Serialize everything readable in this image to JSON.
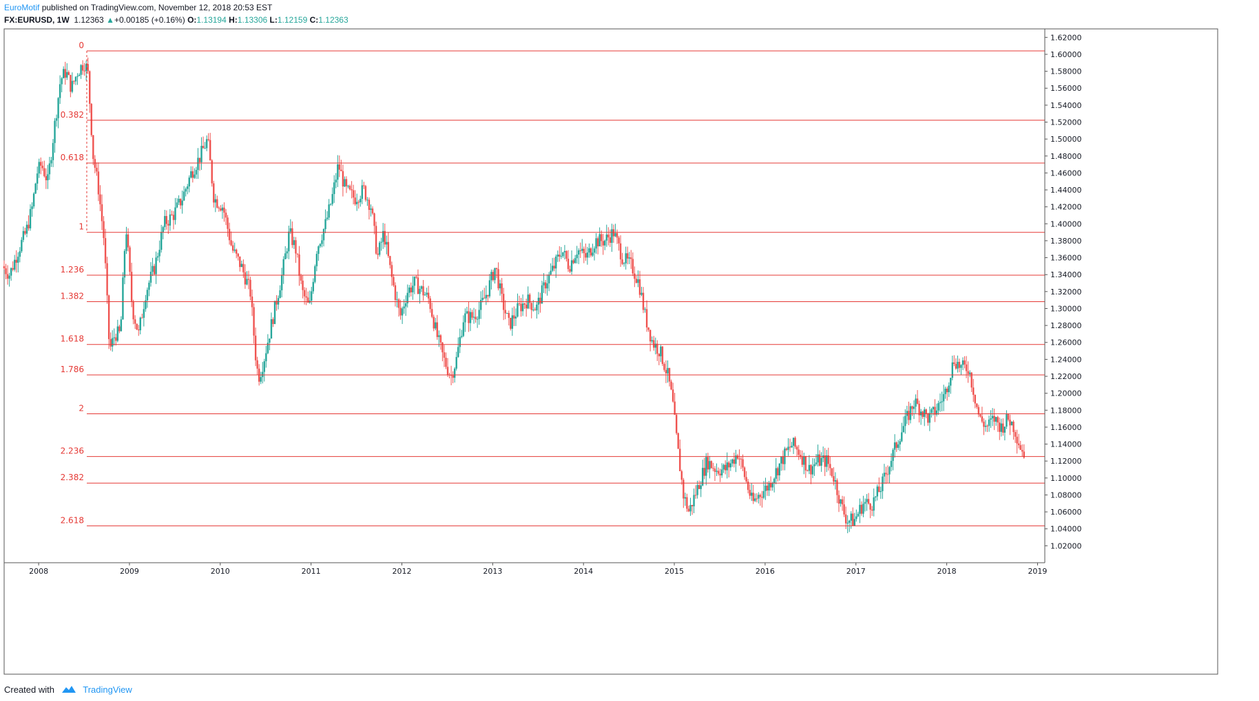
{
  "header": {
    "publisher": "EuroMotif",
    "published_text": " published on TradingView.com, November 12, 2018 20:53 EST",
    "symbol": "FX:EURUSD, 1W",
    "last": "1.12363",
    "change": "+0.00185 (+0.16%)",
    "open_label": "O:",
    "open": "1.13194",
    "high_label": "H:",
    "high": "1.13306",
    "low_label": "L:",
    "low": "1.12159",
    "close_label": "C:",
    "close": "1.12363"
  },
  "footer": {
    "created_with": "Created with",
    "brand": "TradingView"
  },
  "colors": {
    "up": "#26a69a",
    "down": "#ef5350",
    "fib": "#e53935",
    "grid_border": "#555555",
    "brand": "#2196f3"
  },
  "chart_data": {
    "type": "candlestick",
    "timeframe": "1W",
    "symbol": "EURUSD",
    "x_tick_labels": [
      "2008",
      "2009",
      "2010",
      "2011",
      "2012",
      "2013",
      "2014",
      "2015",
      "2016",
      "2017",
      "2018",
      "2019"
    ],
    "x_tick_years": [
      2008,
      2009,
      2010,
      2011,
      2012,
      2013,
      2014,
      2015,
      2016,
      2017,
      2018,
      2019
    ],
    "xlim": [
      2007.62,
      2019.08
    ],
    "y_tick_labels": [
      "1.62000",
      "1.60000",
      "1.58000",
      "1.56000",
      "1.54000",
      "1.52000",
      "1.50000",
      "1.48000",
      "1.46000",
      "1.44000",
      "1.42000",
      "1.40000",
      "1.38000",
      "1.36000",
      "1.34000",
      "1.32000",
      "1.30000",
      "1.28000",
      "1.26000",
      "1.24000",
      "1.22000",
      "1.20000",
      "1.18000",
      "1.16000",
      "1.14000",
      "1.12000",
      "1.10000",
      "1.08000",
      "1.06000",
      "1.04000",
      "1.02000"
    ],
    "ylim": [
      1.0,
      1.63
    ],
    "fib_levels": [
      {
        "label": "0",
        "price": 1.604
      },
      {
        "label": "0.382",
        "price": 1.5222
      },
      {
        "label": "0.618",
        "price": 1.4717
      },
      {
        "label": "1",
        "price": 1.3899
      },
      {
        "label": "1.236",
        "price": 1.3394
      },
      {
        "label": "1.382",
        "price": 1.3081
      },
      {
        "label": "1.618",
        "price": 1.2576
      },
      {
        "label": "1.786",
        "price": 1.2216
      },
      {
        "label": "2",
        "price": 1.1758
      },
      {
        "label": "2.236",
        "price": 1.1253
      },
      {
        "label": "2.382",
        "price": 1.094
      },
      {
        "label": "2.618",
        "price": 1.0435
      }
    ],
    "fib_start_date": 2008.53,
    "price_path": [
      [
        2007.62,
        1.35
      ],
      [
        2007.7,
        1.34
      ],
      [
        2007.8,
        1.37
      ],
      [
        2007.88,
        1.39
      ],
      [
        2007.95,
        1.42
      ],
      [
        2008.0,
        1.46
      ],
      [
        2008.05,
        1.47
      ],
      [
        2008.12,
        1.45
      ],
      [
        2008.2,
        1.52
      ],
      [
        2008.26,
        1.57
      ],
      [
        2008.32,
        1.58
      ],
      [
        2008.38,
        1.56
      ],
      [
        2008.45,
        1.58
      ],
      [
        2008.52,
        1.59
      ],
      [
        2008.56,
        1.58
      ],
      [
        2008.62,
        1.48
      ],
      [
        2008.68,
        1.44
      ],
      [
        2008.74,
        1.38
      ],
      [
        2008.8,
        1.25
      ],
      [
        2008.86,
        1.27
      ],
      [
        2008.92,
        1.27
      ],
      [
        2008.98,
        1.4
      ],
      [
        2009.05,
        1.3
      ],
      [
        2009.12,
        1.27
      ],
      [
        2009.2,
        1.32
      ],
      [
        2009.3,
        1.35
      ],
      [
        2009.4,
        1.4
      ],
      [
        2009.5,
        1.41
      ],
      [
        2009.6,
        1.43
      ],
      [
        2009.7,
        1.46
      ],
      [
        2009.8,
        1.48
      ],
      [
        2009.88,
        1.5
      ],
      [
        2009.95,
        1.43
      ],
      [
        2010.05,
        1.42
      ],
      [
        2010.15,
        1.37
      ],
      [
        2010.25,
        1.35
      ],
      [
        2010.35,
        1.32
      ],
      [
        2010.42,
        1.23
      ],
      [
        2010.45,
        1.22
      ],
      [
        2010.5,
        1.24
      ],
      [
        2010.6,
        1.29
      ],
      [
        2010.7,
        1.34
      ],
      [
        2010.78,
        1.39
      ],
      [
        2010.85,
        1.37
      ],
      [
        2010.92,
        1.32
      ],
      [
        2011.0,
        1.3
      ],
      [
        2011.08,
        1.37
      ],
      [
        2011.18,
        1.4
      ],
      [
        2011.25,
        1.43
      ],
      [
        2011.32,
        1.47
      ],
      [
        2011.4,
        1.44
      ],
      [
        2011.5,
        1.43
      ],
      [
        2011.6,
        1.44
      ],
      [
        2011.68,
        1.42
      ],
      [
        2011.75,
        1.36
      ],
      [
        2011.82,
        1.39
      ],
      [
        2011.9,
        1.34
      ],
      [
        2012.0,
        1.29
      ],
      [
        2012.08,
        1.32
      ],
      [
        2012.16,
        1.33
      ],
      [
        2012.25,
        1.32
      ],
      [
        2012.32,
        1.31
      ],
      [
        2012.4,
        1.27
      ],
      [
        2012.48,
        1.24
      ],
      [
        2012.56,
        1.22
      ],
      [
        2012.62,
        1.24
      ],
      [
        2012.7,
        1.29
      ],
      [
        2012.8,
        1.29
      ],
      [
        2012.88,
        1.3
      ],
      [
        2012.96,
        1.32
      ],
      [
        2013.05,
        1.35
      ],
      [
        2013.12,
        1.31
      ],
      [
        2013.2,
        1.28
      ],
      [
        2013.3,
        1.3
      ],
      [
        2013.4,
        1.31
      ],
      [
        2013.5,
        1.3
      ],
      [
        2013.6,
        1.33
      ],
      [
        2013.7,
        1.35
      ],
      [
        2013.78,
        1.37
      ],
      [
        2013.86,
        1.35
      ],
      [
        2013.95,
        1.37
      ],
      [
        2014.05,
        1.36
      ],
      [
        2014.15,
        1.38
      ],
      [
        2014.25,
        1.38
      ],
      [
        2014.35,
        1.39
      ],
      [
        2014.45,
        1.36
      ],
      [
        2014.55,
        1.35
      ],
      [
        2014.63,
        1.33
      ],
      [
        2014.7,
        1.29
      ],
      [
        2014.78,
        1.26
      ],
      [
        2014.86,
        1.25
      ],
      [
        2014.95,
        1.22
      ],
      [
        2015.0,
        1.19
      ],
      [
        2015.05,
        1.14
      ],
      [
        2015.12,
        1.08
      ],
      [
        2015.18,
        1.06
      ],
      [
        2015.28,
        1.09
      ],
      [
        2015.38,
        1.12
      ],
      [
        2015.48,
        1.11
      ],
      [
        2015.58,
        1.11
      ],
      [
        2015.66,
        1.12
      ],
      [
        2015.72,
        1.13
      ],
      [
        2015.8,
        1.1
      ],
      [
        2015.88,
        1.07
      ],
      [
        2015.95,
        1.08
      ],
      [
        2016.05,
        1.09
      ],
      [
        2016.15,
        1.11
      ],
      [
        2016.25,
        1.13
      ],
      [
        2016.32,
        1.14
      ],
      [
        2016.4,
        1.13
      ],
      [
        2016.5,
        1.11
      ],
      [
        2016.6,
        1.12
      ],
      [
        2016.7,
        1.12
      ],
      [
        2016.78,
        1.1
      ],
      [
        2016.85,
        1.07
      ],
      [
        2016.92,
        1.05
      ],
      [
        2017.0,
        1.05
      ],
      [
        2017.1,
        1.07
      ],
      [
        2017.2,
        1.07
      ],
      [
        2017.3,
        1.09
      ],
      [
        2017.4,
        1.12
      ],
      [
        2017.5,
        1.15
      ],
      [
        2017.58,
        1.17
      ],
      [
        2017.66,
        1.19
      ],
      [
        2017.74,
        1.18
      ],
      [
        2017.82,
        1.17
      ],
      [
        2017.9,
        1.18
      ],
      [
        2018.0,
        1.2
      ],
      [
        2018.05,
        1.22
      ],
      [
        2018.1,
        1.24
      ],
      [
        2018.18,
        1.23
      ],
      [
        2018.26,
        1.23
      ],
      [
        2018.32,
        1.2
      ],
      [
        2018.38,
        1.17
      ],
      [
        2018.46,
        1.16
      ],
      [
        2018.54,
        1.17
      ],
      [
        2018.62,
        1.16
      ],
      [
        2018.7,
        1.17
      ],
      [
        2018.76,
        1.16
      ],
      [
        2018.82,
        1.14
      ],
      [
        2018.86,
        1.13
      ]
    ],
    "grid": false,
    "legend": "none"
  }
}
